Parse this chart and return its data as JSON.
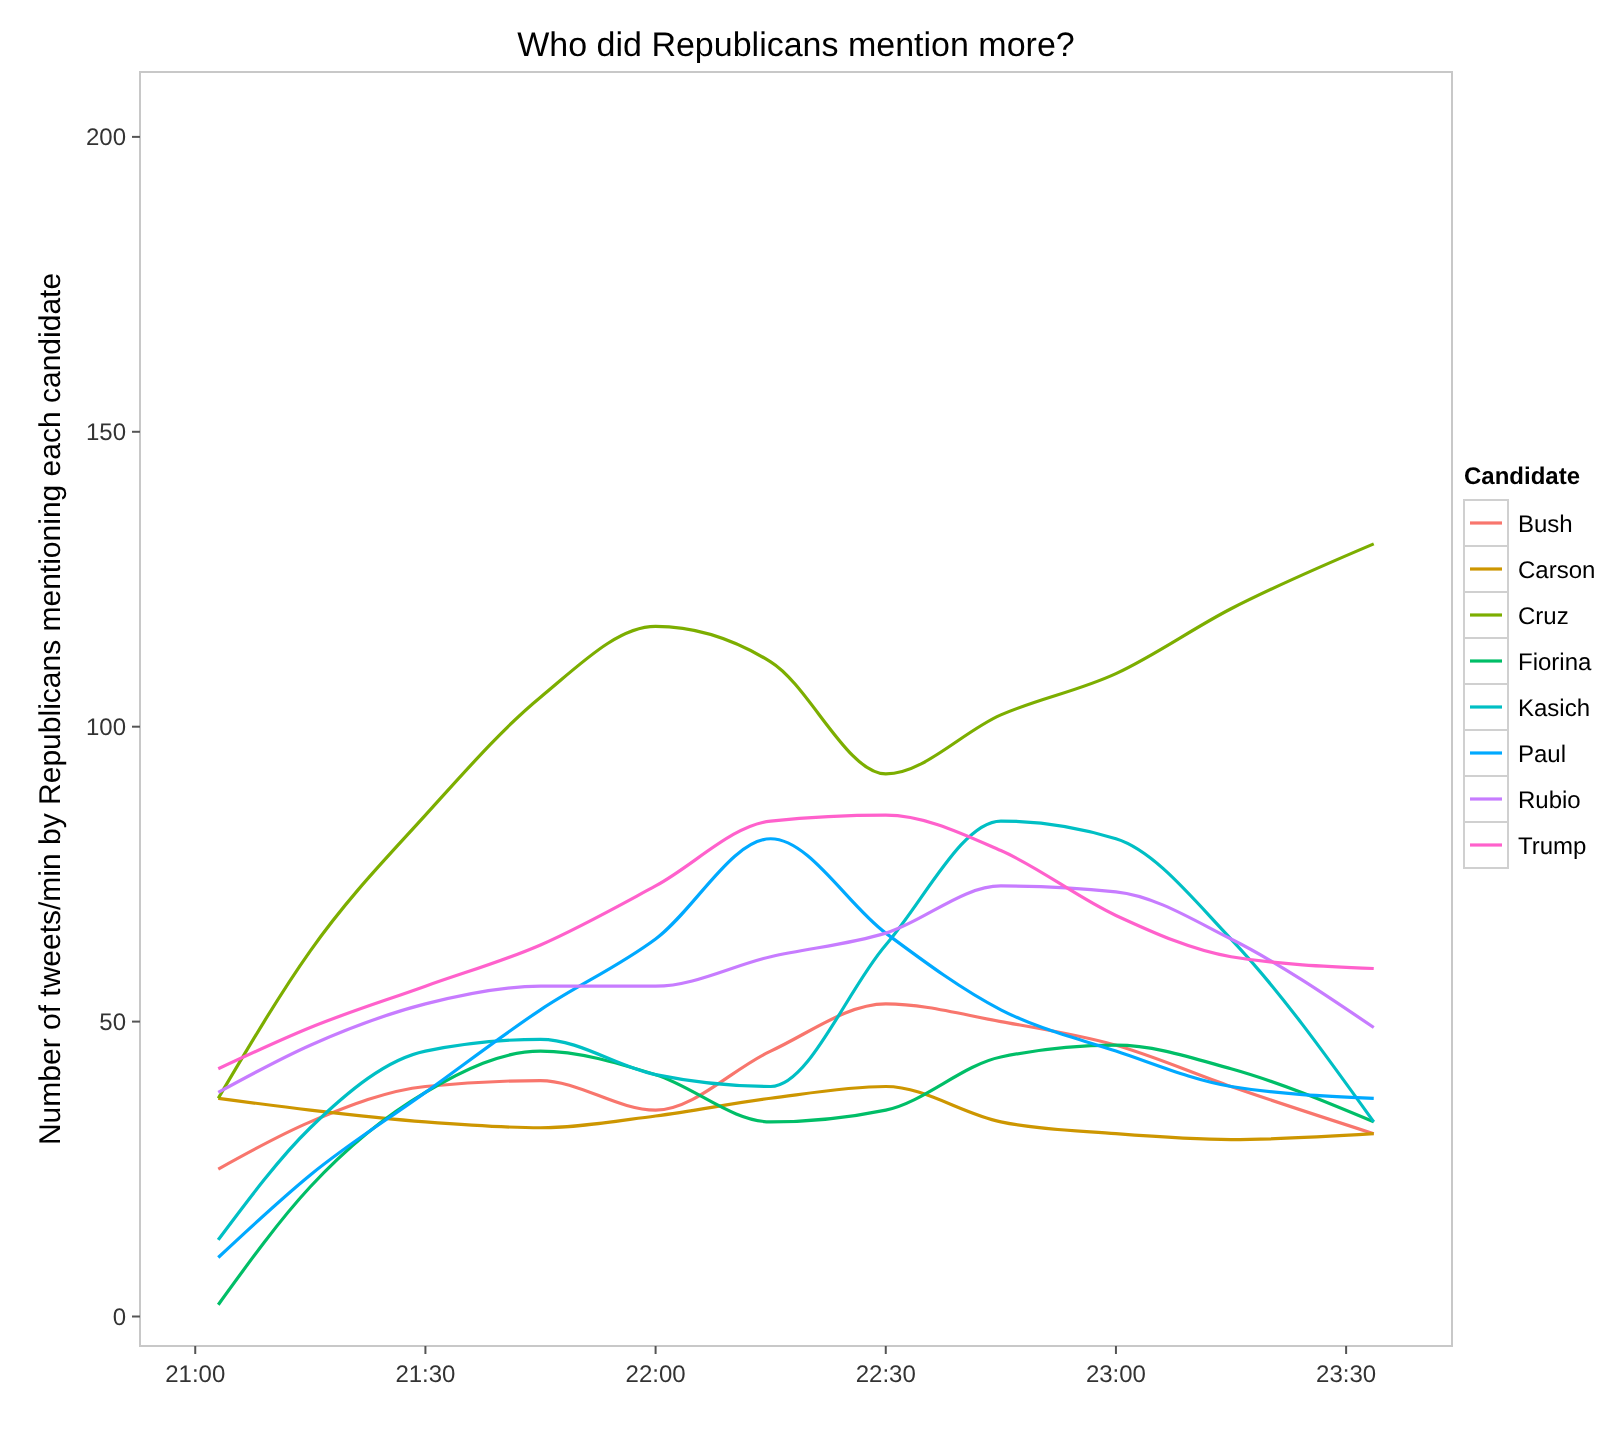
{
  "chart_data": {
    "type": "line",
    "title": "Who did Republicans mention more?",
    "ylabel": "Number of tweets/min by Republicans mentioning each candidate",
    "legend_title": "Candidate",
    "legend": "right",
    "grid": false,
    "x": [
      21.05,
      21.25,
      21.5,
      21.75,
      22.0,
      22.25,
      22.5,
      22.75,
      23.0,
      23.25,
      23.56
    ],
    "xlim": [
      20.88,
      23.73
    ],
    "ylim": [
      -5,
      211
    ],
    "xticks": [
      {
        "value": 21,
        "label": "21:00"
      },
      {
        "value": 21.5,
        "label": "21:30"
      },
      {
        "value": 22,
        "label": "22:00"
      },
      {
        "value": 22.5,
        "label": "22:30"
      },
      {
        "value": 23,
        "label": "23:00"
      },
      {
        "value": 23.5,
        "label": "23:30"
      }
    ],
    "yticks": [
      0,
      50,
      100,
      150,
      200
    ],
    "series": [
      {
        "name": "Bush",
        "color": "#f8766d",
        "values": [
          25,
          33,
          39,
          40,
          35,
          45,
          53,
          50,
          46,
          39,
          31
        ]
      },
      {
        "name": "Carson",
        "color": "#cd9600",
        "values": [
          37,
          35,
          33,
          32,
          34,
          37,
          39,
          33,
          31,
          30,
          31
        ]
      },
      {
        "name": "Cruz",
        "color": "#7cae00",
        "values": [
          37,
          62,
          85,
          105,
          117,
          111,
          92,
          102,
          109,
          120,
          131
        ]
      },
      {
        "name": "Fiorina",
        "color": "#00be67",
        "values": [
          2,
          22,
          38,
          45,
          41,
          33,
          35,
          44,
          46,
          42,
          33
        ]
      },
      {
        "name": "Kasich",
        "color": "#00bfc4",
        "values": [
          13,
          32,
          45,
          47,
          41,
          39,
          63,
          84,
          81,
          64,
          33
        ]
      },
      {
        "name": "Paul",
        "color": "#00a9ff",
        "values": [
          10,
          24,
          38,
          52,
          64,
          81,
          65,
          52,
          45,
          39,
          37
        ]
      },
      {
        "name": "Rubio",
        "color": "#c77cff",
        "values": [
          38,
          46,
          53,
          56,
          56,
          61,
          65,
          73,
          72,
          64,
          49
        ]
      },
      {
        "name": "Trump",
        "color": "#ff61cc",
        "values": [
          42,
          49,
          56,
          63,
          73,
          84,
          85,
          79,
          68,
          61,
          59
        ]
      }
    ]
  }
}
